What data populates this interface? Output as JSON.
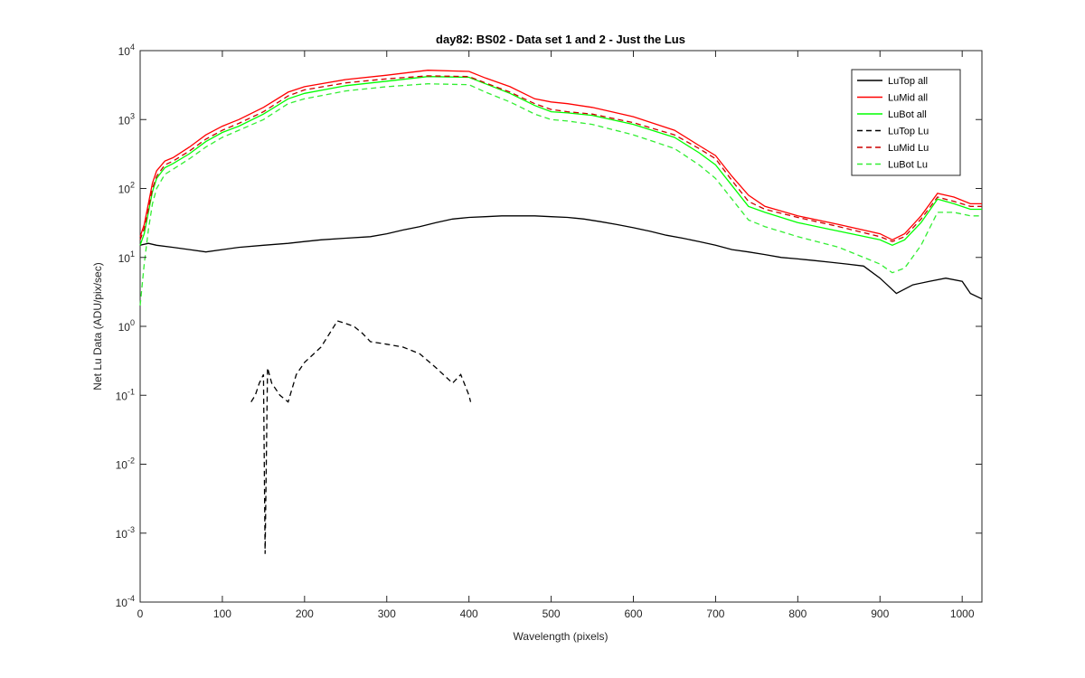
{
  "chart_data": {
    "type": "line",
    "title": "day82: BS02 - Data set 1 and 2 - Just the Lus",
    "xlabel": "Wavelength (pixels)",
    "ylabel": "Net Lu Data (ADU/pix/sec)",
    "xlim": [
      0,
      1024
    ],
    "ylim": [
      0.0001,
      10000
    ],
    "yscale": "log",
    "grid": false,
    "legend_position": "top-right",
    "x_ticks": [
      0,
      100,
      200,
      300,
      400,
      500,
      600,
      700,
      800,
      900,
      1000
    ],
    "y_ticks": [
      {
        "base": "10",
        "exp": "4"
      },
      {
        "base": "10",
        "exp": "3"
      },
      {
        "base": "10",
        "exp": "2"
      },
      {
        "base": "10",
        "exp": "1"
      },
      {
        "base": "10",
        "exp": "0"
      },
      {
        "base": "10",
        "exp": "-1"
      },
      {
        "base": "10",
        "exp": "-2"
      },
      {
        "base": "10",
        "exp": "-3"
      },
      {
        "base": "10",
        "exp": "-4"
      }
    ],
    "series": [
      {
        "name": "LuTop  all",
        "color": "#000000",
        "style": "solid",
        "x": [
          0,
          10,
          20,
          40,
          60,
          80,
          100,
          120,
          150,
          180,
          200,
          220,
          250,
          280,
          300,
          320,
          340,
          360,
          380,
          400,
          420,
          440,
          460,
          480,
          500,
          520,
          540,
          560,
          580,
          600,
          620,
          640,
          660,
          680,
          700,
          720,
          740,
          760,
          780,
          800,
          820,
          840,
          860,
          880,
          900,
          920,
          940,
          960,
          980,
          1000,
          1010,
          1024
        ],
        "y": [
          15,
          16,
          15,
          14,
          13,
          12,
          13,
          14,
          15,
          16,
          17,
          18,
          19,
          20,
          22,
          25,
          28,
          32,
          36,
          38,
          39,
          40,
          40,
          40,
          39,
          38,
          36,
          33,
          30,
          27,
          24,
          21,
          19,
          17,
          15,
          13,
          12,
          11,
          10,
          9.5,
          9,
          8.5,
          8,
          7.5,
          5,
          3,
          4,
          4.5,
          5,
          4.5,
          3,
          2.5
        ]
      },
      {
        "name": "LuMid  all",
        "color": "#ff0000",
        "style": "solid",
        "x": [
          0,
          5,
          10,
          15,
          20,
          30,
          40,
          60,
          80,
          100,
          120,
          150,
          180,
          200,
          250,
          300,
          350,
          400,
          420,
          450,
          480,
          500,
          520,
          550,
          600,
          650,
          680,
          700,
          720,
          740,
          760,
          800,
          850,
          900,
          915,
          930,
          950,
          970,
          990,
          1010,
          1024
        ],
        "y": [
          20,
          30,
          60,
          120,
          180,
          250,
          280,
          400,
          600,
          800,
          1000,
          1500,
          2500,
          3000,
          3800,
          4400,
          5200,
          5000,
          4000,
          3000,
          2000,
          1800,
          1700,
          1500,
          1100,
          700,
          420,
          300,
          150,
          80,
          55,
          40,
          30,
          22,
          18,
          22,
          40,
          85,
          75,
          60,
          60
        ]
      },
      {
        "name": "LuBot  all",
        "color": "#00ff00",
        "style": "solid",
        "x": [
          0,
          5,
          10,
          15,
          20,
          30,
          40,
          60,
          80,
          100,
          120,
          150,
          180,
          200,
          250,
          300,
          350,
          400,
          420,
          450,
          480,
          500,
          520,
          550,
          600,
          650,
          680,
          700,
          720,
          740,
          760,
          800,
          850,
          900,
          915,
          930,
          950,
          970,
          990,
          1010,
          1024
        ],
        "y": [
          15,
          22,
          45,
          90,
          140,
          200,
          230,
          320,
          480,
          650,
          800,
          1200,
          2000,
          2400,
          3100,
          3600,
          4200,
          4100,
          3300,
          2400,
          1600,
          1300,
          1250,
          1150,
          850,
          550,
          330,
          220,
          110,
          55,
          45,
          32,
          24,
          18,
          15,
          18,
          32,
          70,
          60,
          50,
          50
        ]
      },
      {
        "name": "LuTop  Lu",
        "color": "#000000",
        "style": "dashed",
        "x": [
          135,
          140,
          145,
          150,
          152,
          155,
          160,
          170,
          180,
          190,
          200,
          220,
          240,
          250,
          260,
          270,
          280,
          300,
          320,
          340,
          360,
          380,
          390,
          400,
          402
        ],
        "y": [
          0.08,
          0.1,
          0.15,
          0.2,
          0.0005,
          0.25,
          0.15,
          0.1,
          0.08,
          0.2,
          0.3,
          0.5,
          1.2,
          1.1,
          1.0,
          0.8,
          0.6,
          0.55,
          0.5,
          0.4,
          0.25,
          0.15,
          0.2,
          0.1,
          0.08
        ]
      },
      {
        "name": "LuMid  Lu",
        "color": "#cc0000",
        "style": "dashed",
        "x": [
          0,
          5,
          10,
          15,
          20,
          30,
          40,
          60,
          80,
          100,
          120,
          150,
          180,
          200,
          250,
          300,
          350,
          400,
          420,
          450,
          480,
          500,
          520,
          550,
          600,
          650,
          680,
          700,
          720,
          740,
          760,
          800,
          850,
          900,
          915,
          930,
          950,
          970,
          990,
          1010,
          1024
        ],
        "y": [
          18,
          26,
          50,
          100,
          150,
          220,
          250,
          350,
          520,
          700,
          880,
          1300,
          2200,
          2700,
          3400,
          3900,
          4300,
          4200,
          3400,
          2500,
          1700,
          1400,
          1300,
          1200,
          900,
          600,
          380,
          270,
          130,
          65,
          50,
          38,
          28,
          20,
          17,
          20,
          36,
          75,
          65,
          55,
          55
        ]
      },
      {
        "name": "LuBot  Lu",
        "color": "#33ee33",
        "style": "dashed",
        "x": [
          0,
          5,
          10,
          15,
          20,
          30,
          40,
          60,
          80,
          100,
          120,
          150,
          180,
          200,
          250,
          300,
          350,
          400,
          420,
          450,
          480,
          500,
          520,
          550,
          600,
          650,
          680,
          700,
          720,
          740,
          760,
          800,
          850,
          900,
          915,
          930,
          950,
          970,
          990,
          1010,
          1024
        ],
        "y": [
          2,
          8,
          25,
          60,
          100,
          160,
          190,
          270,
          400,
          550,
          700,
          1000,
          1700,
          2000,
          2600,
          3000,
          3300,
          3200,
          2500,
          1800,
          1200,
          1000,
          950,
          850,
          600,
          380,
          220,
          140,
          70,
          35,
          28,
          20,
          14,
          8,
          6,
          7,
          15,
          45,
          45,
          40,
          40
        ]
      }
    ]
  }
}
